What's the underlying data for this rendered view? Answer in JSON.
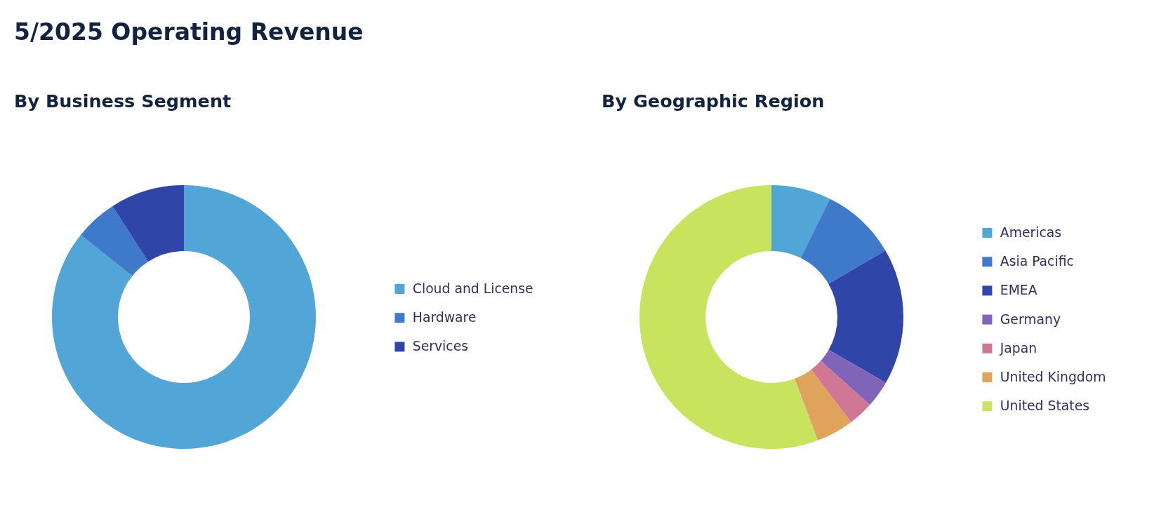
{
  "chart_data": [
    {
      "type": "donut",
      "title": "5/2025 Operating Revenue",
      "subtitle": "By Business Segment",
      "categories": [
        "Cloud and License",
        "Hardware",
        "Services"
      ],
      "values": [
        85.7,
        5.2,
        9.1
      ],
      "colors": [
        "#51a6d7",
        "#3f79c9",
        "#3045a8"
      ],
      "legend": "right"
    },
    {
      "type": "donut",
      "subtitle": "By Geographic Region",
      "categories": [
        "Americas",
        "Asia Pacific",
        "EMEA",
        "Germany",
        "Japan",
        "United Kingdom",
        "United States"
      ],
      "values": [
        7.3,
        9.3,
        16.7,
        3.3,
        3.1,
        4.6,
        55.7
      ],
      "colors": [
        "#51a6d7",
        "#3f79c9",
        "#3045a8",
        "#8064b8",
        "#d07795",
        "#e0a35b",
        "#c8e35e"
      ],
      "legend": "right"
    }
  ]
}
